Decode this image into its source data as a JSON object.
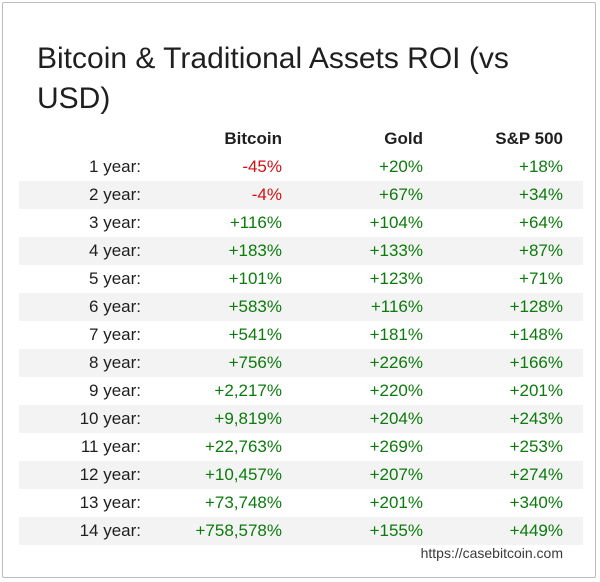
{
  "chart_data": {
    "type": "table",
    "title": "Bitcoin & Traditional Assets ROI (vs USD)",
    "columns": [
      "",
      "Bitcoin",
      "Gold",
      "S&P 500"
    ],
    "rows": [
      {
        "label": "1 year:",
        "bitcoin": "-45%",
        "gold": "+20%",
        "sp500": "+18%"
      },
      {
        "label": "2 year:",
        "bitcoin": "-4%",
        "gold": "+67%",
        "sp500": "+34%"
      },
      {
        "label": "3 year:",
        "bitcoin": "+116%",
        "gold": "+104%",
        "sp500": "+64%"
      },
      {
        "label": "4 year:",
        "bitcoin": "+183%",
        "gold": "+133%",
        "sp500": "+87%"
      },
      {
        "label": "5 year:",
        "bitcoin": "+101%",
        "gold": "+123%",
        "sp500": "+71%"
      },
      {
        "label": "6 year:",
        "bitcoin": "+583%",
        "gold": "+116%",
        "sp500": "+128%"
      },
      {
        "label": "7 year:",
        "bitcoin": "+541%",
        "gold": "+181%",
        "sp500": "+148%"
      },
      {
        "label": "8 year:",
        "bitcoin": "+756%",
        "gold": "+226%",
        "sp500": "+166%"
      },
      {
        "label": "9 year:",
        "bitcoin": "+2,217%",
        "gold": "+220%",
        "sp500": "+201%"
      },
      {
        "label": "10 year:",
        "bitcoin": "+9,819%",
        "gold": "+204%",
        "sp500": "+243%"
      },
      {
        "label": "11 year:",
        "bitcoin": "+22,763%",
        "gold": "+269%",
        "sp500": "+253%"
      },
      {
        "label": "12 year:",
        "bitcoin": "+10,457%",
        "gold": "+207%",
        "sp500": "+274%"
      },
      {
        "label": "13 year:",
        "bitcoin": "+73,748%",
        "gold": "+201%",
        "sp500": "+340%"
      },
      {
        "label": "14 year:",
        "bitcoin": "+758,578%",
        "gold": "+155%",
        "sp500": "+449%"
      }
    ]
  },
  "source": "https://casebitcoin.com",
  "colors": {
    "positive": "#0c7a0c",
    "negative": "#d01212",
    "row_shade": "#f3f3f3"
  }
}
